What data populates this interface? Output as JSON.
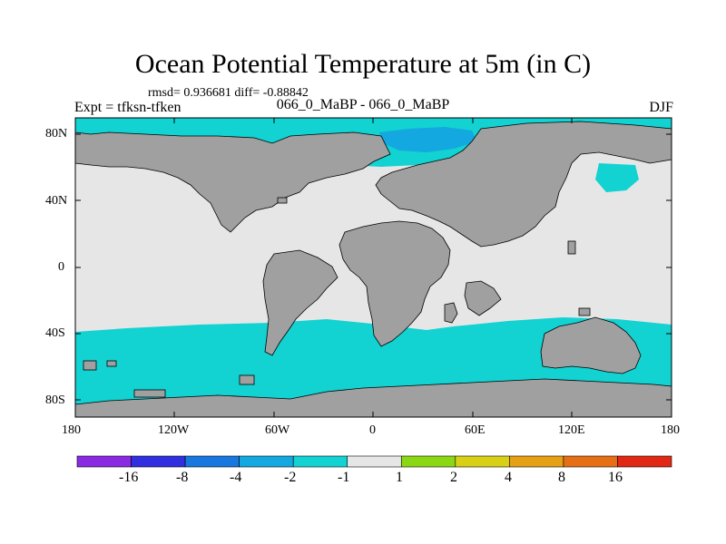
{
  "title": "Ocean Potential Temperature at 5m (in C)",
  "stats_line": "rmsd= 0.936681 diff= -0.88842",
  "experiment": "Expt = tfksn-tfken",
  "case": "066_0_MaBP - 066_0_MaBP",
  "season": "DJF",
  "axes": {
    "lat_ticks": [
      "80N",
      "40N",
      "0",
      "40S",
      "80S"
    ],
    "lon_ticks": [
      "180",
      "120W",
      "60W",
      "0",
      "60E",
      "120E",
      "180"
    ]
  },
  "colors": {
    "land": "#a0a0a0",
    "ocean_neutral": "#e6e6e6",
    "anomaly_cyan": "#12d2d2",
    "anomaly_blue": "#14a8e0",
    "frame": "#000000"
  },
  "colorbar": {
    "labels": [
      "-16",
      "-8",
      "-4",
      "-2",
      "-1",
      "1",
      "2",
      "4",
      "8",
      "16"
    ],
    "colors": [
      "#8a2be2",
      "#3030e0",
      "#1878e0",
      "#14a8e0",
      "#12d2d2",
      "#e6e6e6",
      "#8ad814",
      "#d8d014",
      "#e6a014",
      "#e66e14",
      "#e02814"
    ]
  }
}
